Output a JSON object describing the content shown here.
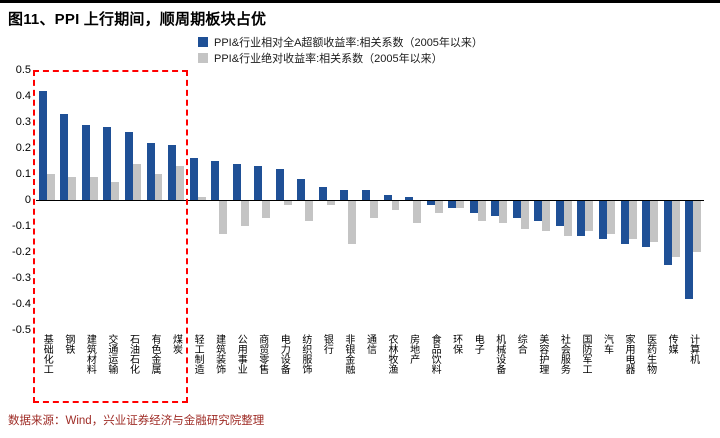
{
  "header": {
    "title": "图11、PPI 上行期间，顺周期板块占优"
  },
  "legend": [
    {
      "label": "PPI&行业相对全A超额收益率:相关系数（2005年以来）",
      "color": "#1F5096"
    },
    {
      "label": "PPI&行业绝对收益率:相关系数（2005年以来）",
      "color": "#C4C4C4"
    }
  ],
  "footer": {
    "source": "数据来源：Wind，兴业证券经济与金融研究院整理"
  },
  "chart_data": {
    "type": "bar",
    "title": "图11、PPI 上行期间，顺周期板块占优",
    "xlabel": "",
    "ylabel": "",
    "ylim": [
      -0.5,
      0.5
    ],
    "yticks": [
      0.5,
      0.4,
      0.3,
      0.2,
      0.1,
      0,
      -0.1,
      -0.2,
      -0.3,
      -0.4,
      -0.5
    ],
    "grid": false,
    "legend_position": "top",
    "categories": [
      "基础化工",
      "钢铁",
      "建筑材料",
      "交通运输",
      "石油石化",
      "有色金属",
      "煤炭",
      "轻工制造",
      "建筑装饰",
      "公用事业",
      "商贸零售",
      "电力设备",
      "纺织服饰",
      "银行",
      "非银金融",
      "通信",
      "农林牧渔",
      "房地产",
      "食品饮料",
      "环保",
      "电子",
      "机械设备",
      "综合",
      "美容护理",
      "社会服务",
      "国防军工",
      "汽车",
      "家用电器",
      "医药生物",
      "传媒",
      "计算机"
    ],
    "series": [
      {
        "name": "PPI&行业相对全A超额收益率:相关系数（2005年以来）",
        "color": "#1F5096",
        "values": [
          0.42,
          0.33,
          0.29,
          0.28,
          0.26,
          0.22,
          0.21,
          0.16,
          0.15,
          0.14,
          0.13,
          0.12,
          0.08,
          0.05,
          0.04,
          0.04,
          0.02,
          0.01,
          -0.02,
          -0.03,
          -0.05,
          -0.06,
          -0.07,
          -0.08,
          -0.1,
          -0.14,
          -0.15,
          -0.17,
          -0.18,
          -0.25,
          -0.38
        ]
      },
      {
        "name": "PPI&行业绝对收益率:相关系数（2005年以来）",
        "color": "#C4C4C4",
        "values": [
          0.1,
          0.09,
          0.09,
          0.07,
          0.14,
          0.1,
          0.13,
          0.01,
          -0.13,
          -0.1,
          -0.07,
          -0.02,
          -0.08,
          -0.02,
          -0.17,
          -0.07,
          -0.04,
          -0.09,
          -0.05,
          -0.03,
          -0.08,
          -0.09,
          -0.11,
          -0.12,
          -0.14,
          -0.12,
          -0.13,
          -0.15,
          -0.16,
          -0.22,
          -0.2
        ]
      }
    ],
    "highlight_box": {
      "from_category": 0,
      "to_category": 6,
      "style": "dashed",
      "color": "#FF0000"
    }
  }
}
